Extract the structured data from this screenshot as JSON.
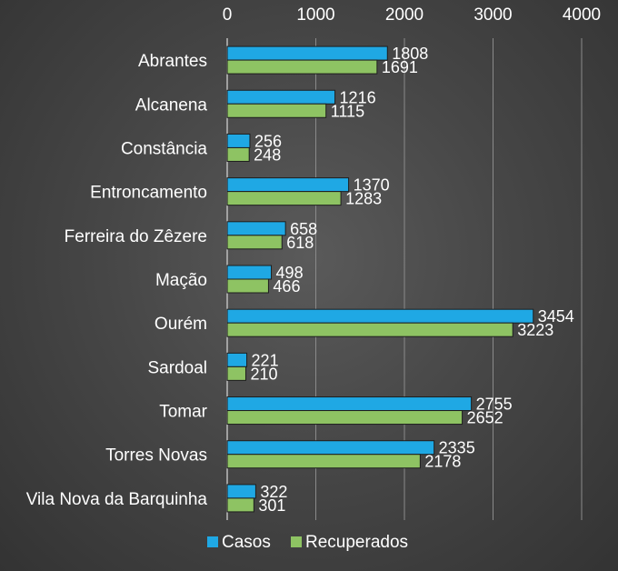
{
  "chart_data": {
    "type": "bar",
    "orientation": "horizontal",
    "categories": [
      "Abrantes",
      "Alcanena",
      "Constância",
      "Entroncamento",
      "Ferreira do Zêzere",
      "Mação",
      "Ourém",
      "Sardoal",
      "Tomar",
      "Torres Novas",
      "Vila Nova da Barquinha"
    ],
    "series": [
      {
        "name": "Casos",
        "color": "#1fa8e4",
        "values": [
          1808,
          1216,
          256,
          1370,
          658,
          498,
          3454,
          221,
          2755,
          2335,
          322
        ]
      },
      {
        "name": "Recuperados",
        "color": "#8ec363",
        "values": [
          1691,
          1115,
          248,
          1283,
          618,
          466,
          3223,
          210,
          2652,
          2178,
          301
        ]
      }
    ],
    "xlim": [
      0,
      4000
    ],
    "xticks": [
      0,
      1000,
      2000,
      3000,
      4000
    ],
    "xaxis_position": "top",
    "grid": true,
    "legend": "bottom",
    "data_labels": true
  }
}
